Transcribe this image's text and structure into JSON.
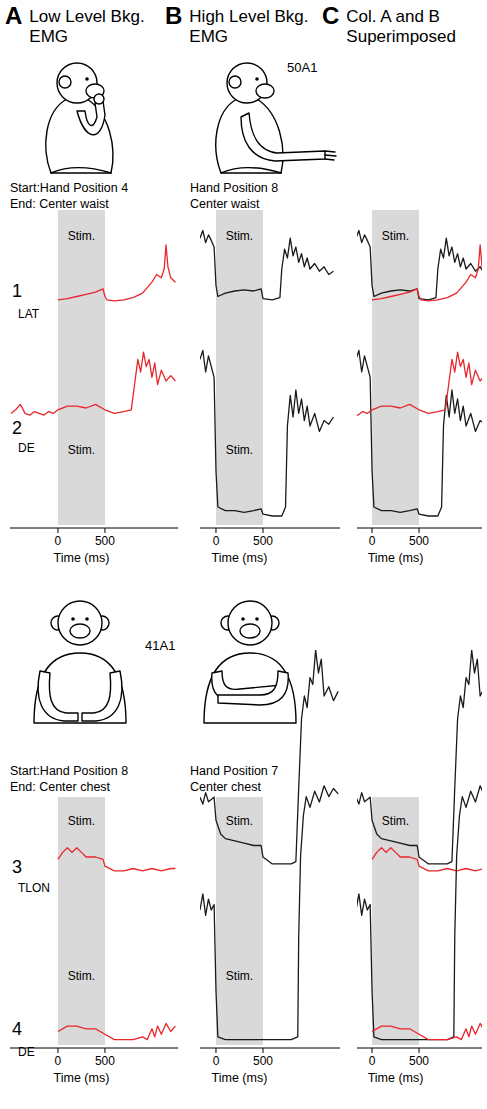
{
  "columns": [
    {
      "letter": "A",
      "title": "Low Level Bkg. EMG",
      "xlim": [
        -510,
        1280
      ]
    },
    {
      "letter": "B",
      "title": "High Level Bkg. EMG",
      "xlim": [
        -170,
        1320
      ]
    },
    {
      "letter": "C",
      "title": "Col. A and B Superimposed",
      "xlim": [
        -160,
        1170
      ]
    }
  ],
  "cases": [
    {
      "id": "50A1",
      "start": "Start:Hand Position 4",
      "end": "End: Center waist",
      "high_start": "Hand Position 8",
      "high_end": "Center waist"
    },
    {
      "id": "41A1",
      "start": "Start:Hand Position 8",
      "end": "End: Center chest",
      "high_start": "Hand Position 7",
      "high_end": "Center chest"
    }
  ],
  "chart_data": [
    {
      "type": "line",
      "title": "1",
      "y_label": "LAT",
      "ylim": [
        0,
        100
      ],
      "tick_labels": false,
      "stim": {
        "start": 0,
        "end": 500,
        "label": "Stim."
      },
      "series": [
        {
          "color": "#e8262b",
          "x": [
            0,
            100,
            200,
            300,
            400,
            480,
            500,
            520,
            600,
            700,
            800,
            900,
            1000,
            1050,
            1100,
            1130,
            1150,
            1170,
            1200,
            1250
          ],
          "values": [
            32,
            33,
            35,
            37,
            39,
            42,
            35,
            32,
            31,
            32,
            34,
            38,
            48,
            55,
            52,
            60,
            82,
            62,
            52,
            48
          ]
        },
        {
          "color": "#1a1a1a",
          "x": [
            -170,
            -140,
            -110,
            -80,
            -50,
            -20,
            0,
            20,
            100,
            200,
            300,
            400,
            480,
            500,
            600,
            680,
            700,
            730,
            760,
            790,
            820,
            850,
            880,
            910,
            940,
            970,
            1000,
            1050,
            1100,
            1150,
            1200,
            1250
          ],
          "values": [
            88,
            95,
            84,
            91,
            86,
            80,
            45,
            35,
            38,
            40,
            41,
            40,
            42,
            33,
            32,
            34,
            60,
            78,
            70,
            88,
            72,
            80,
            66,
            74,
            62,
            70,
            60,
            65,
            58,
            62,
            55,
            58
          ]
        }
      ]
    },
    {
      "type": "line",
      "title": "2",
      "y_label": "DE",
      "ylim": [
        0,
        100
      ],
      "tick_labels": "x",
      "xticks": [
        0,
        500
      ],
      "x_label": "Time (ms)",
      "stim": {
        "start": 0,
        "end": 500,
        "label": "Stim."
      },
      "series": [
        {
          "color": "#e8262b",
          "x": [
            -500,
            -450,
            -400,
            -350,
            -300,
            -250,
            -200,
            -150,
            -100,
            -50,
            0,
            100,
            200,
            300,
            400,
            500,
            600,
            700,
            780,
            820,
            850,
            880,
            910,
            940,
            970,
            1000,
            1030,
            1060,
            1100,
            1150,
            1200,
            1250
          ],
          "values": [
            62,
            64,
            67,
            62,
            61,
            63,
            62,
            61,
            63,
            62,
            64,
            66,
            66,
            65,
            67,
            64,
            62,
            63,
            64,
            80,
            92,
            85,
            96,
            88,
            92,
            82,
            90,
            78,
            86,
            80,
            83,
            80
          ]
        },
        {
          "color": "#1a1a1a",
          "x": [
            -170,
            -140,
            -110,
            -80,
            -50,
            -20,
            0,
            20,
            100,
            200,
            300,
            400,
            480,
            500,
            600,
            700,
            740,
            760,
            790,
            820,
            850,
            880,
            910,
            940,
            970,
            1000,
            1050,
            1100,
            1150,
            1200,
            1250
          ],
          "values": [
            92,
            97,
            85,
            94,
            88,
            82,
            30,
            10,
            8,
            8,
            7,
            8,
            9,
            6,
            5,
            5,
            10,
            55,
            72,
            60,
            75,
            62,
            70,
            58,
            66,
            55,
            62,
            52,
            58,
            56,
            60
          ]
        }
      ]
    },
    {
      "type": "line",
      "title": "3",
      "y_label": "TLON",
      "ylim": [
        0,
        100
      ],
      "tick_labels": false,
      "stim": {
        "start": 0,
        "end": 500,
        "label": "Stim."
      },
      "series": [
        {
          "color": "#e8262b",
          "x": [
            0,
            50,
            100,
            150,
            200,
            250,
            300,
            400,
            480,
            500,
            600,
            700,
            800,
            900,
            1000,
            1100,
            1200,
            1250
          ],
          "values": [
            9,
            12,
            14,
            12,
            14,
            12,
            10,
            10,
            9,
            6,
            4,
            4,
            5,
            4,
            5,
            4,
            5,
            5
          ]
        },
        {
          "color": "#1a1a1a",
          "x": [
            -170,
            -140,
            -110,
            -80,
            -50,
            -20,
            0,
            50,
            100,
            200,
            300,
            400,
            480,
            500,
            600,
            700,
            800,
            850,
            880,
            910,
            940,
            970,
            1000,
            1030,
            1060,
            1090,
            1120,
            1150,
            1200,
            1250,
            1300
          ],
          "values": [
            36,
            33,
            38,
            34,
            35,
            36,
            26,
            20,
            18,
            17,
            16,
            15,
            15,
            10,
            7,
            7,
            7,
            8,
            40,
            70,
            80,
            75,
            88,
            85,
            100,
            90,
            96,
            80,
            84,
            78,
            82
          ]
        }
      ]
    },
    {
      "type": "line",
      "title": "4",
      "y_label": "DE",
      "ylim": [
        0,
        100
      ],
      "tick_labels": "x",
      "xticks": [
        0,
        500
      ],
      "x_label": "Time (ms)",
      "stim": {
        "start": 0,
        "end": 500,
        "label": "Stim."
      },
      "series": [
        {
          "color": "#e8262b",
          "x": [
            0,
            100,
            200,
            300,
            400,
            500,
            600,
            700,
            800,
            900,
            950,
            1000,
            1030,
            1060,
            1100,
            1150,
            1200,
            1250
          ],
          "values": [
            5,
            7,
            7,
            6,
            6,
            4,
            2,
            2,
            2,
            3,
            2,
            6,
            3,
            7,
            4,
            8,
            5,
            7
          ]
        },
        {
          "color": "#1a1a1a",
          "x": [
            -170,
            -140,
            -110,
            -80,
            -50,
            -20,
            0,
            20,
            100,
            200,
            300,
            400,
            500,
            600,
            700,
            800,
            870,
            880,
            900,
            930,
            960,
            1000,
            1050,
            1100,
            1150,
            1200,
            1250,
            1300
          ],
          "values": [
            50,
            56,
            48,
            54,
            50,
            52,
            20,
            3,
            2,
            2,
            2,
            2,
            2,
            2,
            2,
            2,
            3,
            40,
            70,
            85,
            92,
            88,
            94,
            90,
            96,
            92,
            95,
            93
          ]
        }
      ]
    }
  ]
}
